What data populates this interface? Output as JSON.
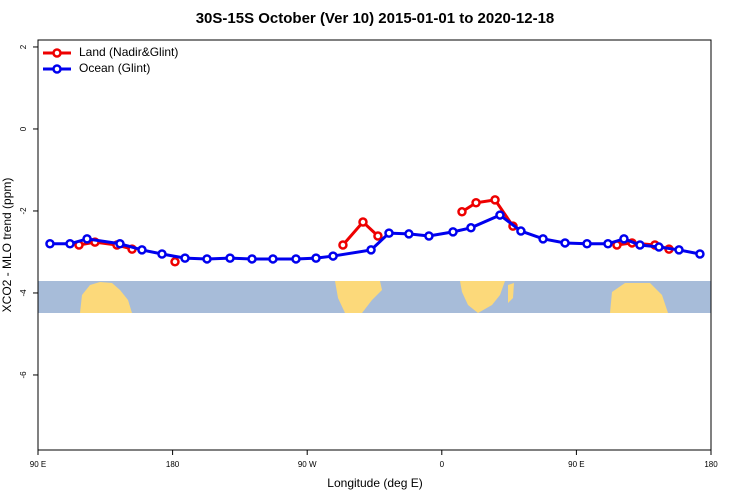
{
  "chart_data": {
    "type": "line",
    "title": "30S-15S October (Ver 10)   2015-01-01 to 2020-12-18",
    "x_label": "Longitude (deg E)",
    "y_label": "XCO2 - MLO trend (ppm)",
    "xlim": [
      90,
      540
    ],
    "xticks": [
      {
        "value": 90,
        "label": "90 E"
      },
      {
        "value": 180,
        "label": "180"
      },
      {
        "value": 270,
        "label": "90 W"
      },
      {
        "value": 360,
        "label": "0"
      },
      {
        "value": 450,
        "label": "90 E"
      },
      {
        "value": 540,
        "label": "180"
      }
    ],
    "ylim": [
      -7.83,
      2.17
    ],
    "yticks": [
      2,
      0,
      -2,
      -4,
      -6
    ],
    "legend": "top-left",
    "series": [
      {
        "name": "Land (Nadir&Glint)",
        "color": "#ee0000",
        "x": [
          117.4,
          128.1,
          142.8,
          152.9,
          null,
          181.6,
          null,
          293.9,
          307.3,
          317.3,
          null,
          373.5,
          382.9,
          395.6,
          407.6,
          null,
          477.1,
          487.2,
          502.5,
          511.9
        ],
        "values": [
          -2.83,
          -2.76,
          -2.83,
          -2.93,
          null,
          -3.24,
          null,
          -2.83,
          -2.27,
          -2.61,
          null,
          -2.02,
          -1.8,
          -1.73,
          -2.37,
          null,
          -2.83,
          -2.78,
          -2.83,
          -2.93
        ]
      },
      {
        "name": "Ocean (Glint)",
        "color": "#0000ee",
        "x": [
          98,
          111.4,
          122.8,
          144.8,
          159.5,
          172.9,
          188.3,
          203,
          218.4,
          233.1,
          247.1,
          262.5,
          275.9,
          287.3,
          312.7,
          324.7,
          338,
          351.4,
          367.5,
          379.5,
          398.9,
          412.9,
          427.7,
          442.4,
          457.1,
          471.1,
          481.8,
          492.5,
          505.2,
          518.6,
          532.6
        ],
        "values": [
          -2.8,
          -2.8,
          -2.68,
          -2.8,
          -2.95,
          -3.05,
          -3.15,
          -3.17,
          -3.15,
          -3.17,
          -3.17,
          -3.17,
          -3.15,
          -3.1,
          -2.95,
          -2.54,
          -2.56,
          -2.61,
          -2.51,
          -2.41,
          -2.1,
          -2.49,
          -2.68,
          -2.78,
          -2.8,
          -2.8,
          -2.68,
          -2.83,
          -2.88,
          -2.95,
          -3.05
        ]
      }
    ]
  }
}
